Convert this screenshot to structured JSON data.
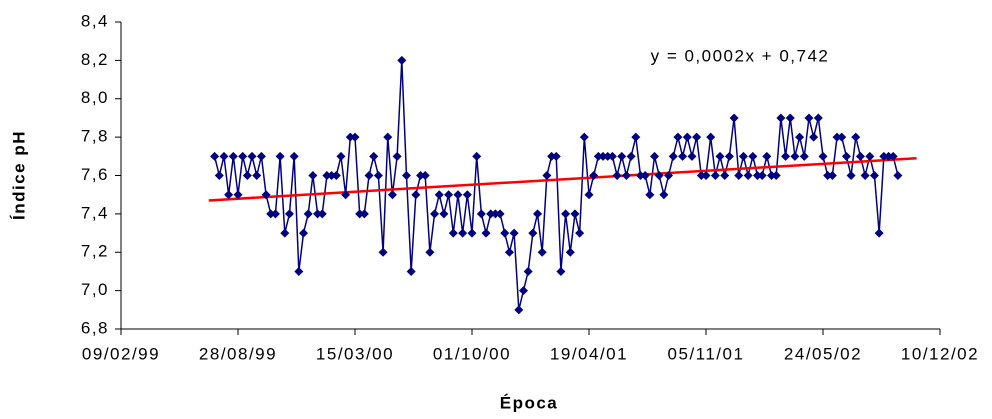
{
  "chart_data": {
    "type": "line",
    "y_label": "Índice pH",
    "x_label": "Época",
    "annotation": "y = 0,0002x + 0,742",
    "xlim": [
      36200,
      37600
    ],
    "xticks": [
      {
        "value": 36200,
        "label": "09/02/99"
      },
      {
        "value": 36400,
        "label": "28/08/99"
      },
      {
        "value": 36600,
        "label": "15/03/00"
      },
      {
        "value": 36800,
        "label": "01/10/00"
      },
      {
        "value": 37000,
        "label": "19/04/01"
      },
      {
        "value": 37200,
        "label": "05/11/01"
      },
      {
        "value": 37400,
        "label": "24/05/02"
      },
      {
        "value": 37600,
        "label": "10/12/02"
      }
    ],
    "ylim": [
      6.8,
      8.4
    ],
    "yticks": [
      {
        "value": 6.8,
        "label": "6,8"
      },
      {
        "value": 7.0,
        "label": "7,0"
      },
      {
        "value": 7.2,
        "label": "7,2"
      },
      {
        "value": 7.4,
        "label": "7,4"
      },
      {
        "value": 7.6,
        "label": "7,6"
      },
      {
        "value": 7.8,
        "label": "7,8"
      },
      {
        "value": 8.0,
        "label": "8,0"
      },
      {
        "value": 8.2,
        "label": "8,2"
      },
      {
        "value": 8.4,
        "label": "8,4"
      }
    ],
    "grid": false,
    "color": "#000080",
    "x": [
      36360,
      36368,
      36376,
      36384,
      36392,
      36400,
      36408,
      36416,
      36424,
      36432,
      36440,
      36448,
      36456,
      36464,
      36472,
      36480,
      36488,
      36496,
      36504,
      36512,
      36520,
      36528,
      36536,
      36544,
      36552,
      36560,
      36568,
      36576,
      36584,
      36592,
      36600,
      36608,
      36616,
      36624,
      36632,
      36640,
      36648,
      36656,
      36664,
      36672,
      36680,
      36688,
      36696,
      36704,
      36712,
      36720,
      36728,
      36736,
      36744,
      36752,
      36760,
      36768,
      36776,
      36784,
      36792,
      36800,
      36808,
      36816,
      36824,
      36832,
      36840,
      36848,
      36856,
      36864,
      36872,
      36880,
      36888,
      36896,
      36904,
      36912,
      36920,
      36928,
      36936,
      36944,
      36952,
      36960,
      36968,
      36976,
      36984,
      36992,
      37000,
      37008,
      37016,
      37024,
      37032,
      37040,
      37048,
      37056,
      37064,
      37072,
      37080,
      37088,
      37096,
      37104,
      37112,
      37120,
      37128,
      37136,
      37144,
      37152,
      37160,
      37168,
      37176,
      37184,
      37192,
      37200,
      37208,
      37216,
      37224,
      37232,
      37240,
      37248,
      37256,
      37264,
      37272,
      37280,
      37288,
      37296,
      37304,
      37312,
      37320,
      37328,
      37336,
      37344,
      37352,
      37360,
      37368,
      37376,
      37384,
      37392,
      37400,
      37408,
      37416,
      37424,
      37432,
      37440,
      37448,
      37456,
      37464,
      37472,
      37480,
      37488,
      37496,
      37504,
      37512,
      37520,
      37528
    ],
    "values": [
      7.7,
      7.6,
      7.7,
      7.5,
      7.7,
      7.5,
      7.7,
      7.6,
      7.7,
      7.6,
      7.7,
      7.5,
      7.4,
      7.4,
      7.7,
      7.3,
      7.4,
      7.7,
      7.1,
      7.3,
      7.4,
      7.6,
      7.4,
      7.4,
      7.6,
      7.6,
      7.6,
      7.7,
      7.5,
      7.8,
      7.8,
      7.4,
      7.4,
      7.6,
      7.7,
      7.6,
      7.2,
      7.8,
      7.5,
      7.7,
      8.2,
      7.6,
      7.1,
      7.5,
      7.6,
      7.6,
      7.2,
      7.4,
      7.5,
      7.4,
      7.5,
      7.3,
      7.5,
      7.3,
      7.5,
      7.3,
      7.7,
      7.4,
      7.3,
      7.4,
      7.4,
      7.4,
      7.3,
      7.2,
      7.3,
      6.9,
      7.0,
      7.1,
      7.3,
      7.4,
      7.2,
      7.6,
      7.7,
      7.7,
      7.1,
      7.4,
      7.2,
      7.4,
      7.3,
      7.8,
      7.5,
      7.6,
      7.7,
      7.7,
      7.7,
      7.7,
      7.6,
      7.7,
      7.6,
      7.7,
      7.8,
      7.6,
      7.6,
      7.5,
      7.7,
      7.6,
      7.5,
      7.6,
      7.7,
      7.8,
      7.7,
      7.8,
      7.7,
      7.8,
      7.6,
      7.6,
      7.8,
      7.6,
      7.7,
      7.6,
      7.7,
      7.9,
      7.6,
      7.7,
      7.6,
      7.7,
      7.6,
      7.6,
      7.7,
      7.6,
      7.6,
      7.9,
      7.7,
      7.9,
      7.7,
      7.8,
      7.7,
      7.9,
      7.8,
      7.9,
      7.7,
      7.6,
      7.6,
      7.8,
      7.8,
      7.7,
      7.6,
      7.8,
      7.7,
      7.6,
      7.7,
      7.6,
      7.3,
      7.7,
      7.7,
      7.7,
      7.6
    ],
    "trendline": {
      "x": [
        36350,
        37560
      ],
      "values": [
        7.47,
        7.69
      ],
      "color": "#ff0000"
    }
  }
}
